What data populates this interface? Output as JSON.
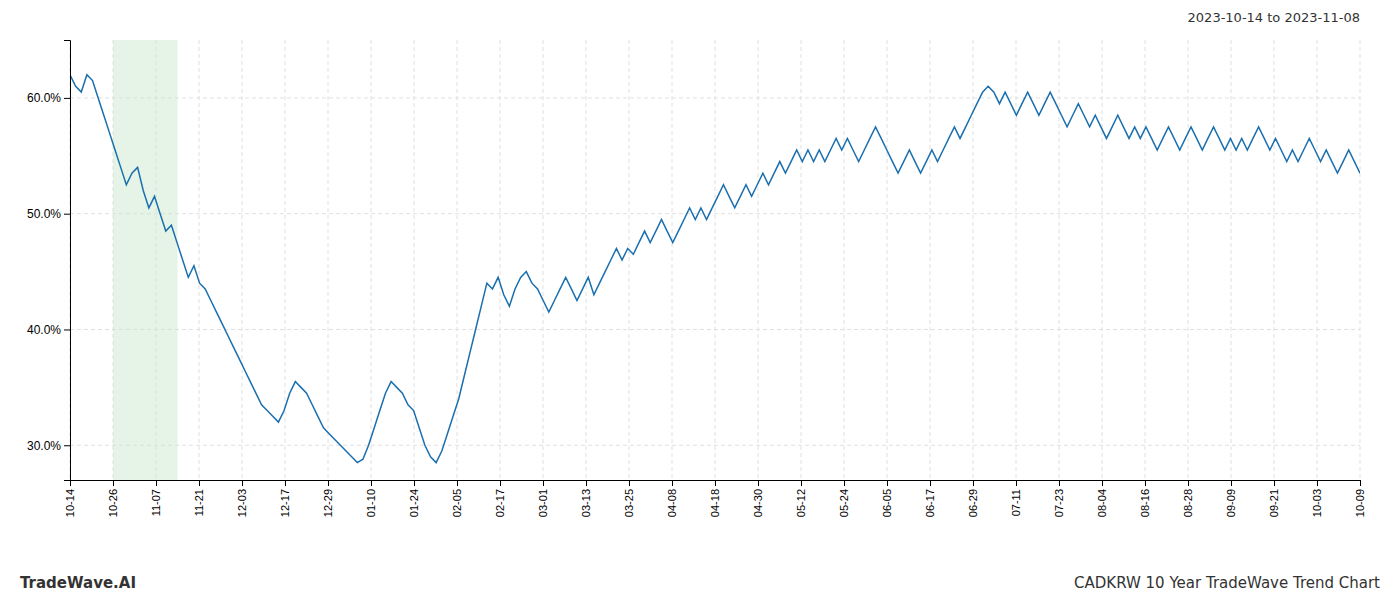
{
  "chart_data": {
    "type": "line",
    "title": "CADKRW 10 Year TradeWave Trend Chart",
    "subtitle": "2023-10-14 to 2023-11-08",
    "annotations": [
      "TradeWave.AI"
    ],
    "color": "#1a6faf",
    "grid": true,
    "xlim": [
      0,
      229
    ],
    "xticks": [
      {
        "value": 0,
        "label": "10-14"
      },
      {
        "value": 7.633333,
        "label": "10-26"
      },
      {
        "value": 15.266667,
        "label": "11-07"
      },
      {
        "value": 22.9,
        "label": "11-21"
      },
      {
        "value": 30.533333,
        "label": "12-03"
      },
      {
        "value": 38.166667,
        "label": "12-17"
      },
      {
        "value": 45.8,
        "label": "12-29"
      },
      {
        "value": 53.433333,
        "label": "01-10"
      },
      {
        "value": 61.066667,
        "label": "01-24"
      },
      {
        "value": 68.7,
        "label": "02-05"
      },
      {
        "value": 76.333333,
        "label": "02-17"
      },
      {
        "value": 83.966667,
        "label": "03-01"
      },
      {
        "value": 91.6,
        "label": "03-13"
      },
      {
        "value": 99.233333,
        "label": "03-25"
      },
      {
        "value": 106.866667,
        "label": "04-08"
      },
      {
        "value": 114.5,
        "label": "04-18"
      },
      {
        "value": 122.133333,
        "label": "04-30"
      },
      {
        "value": 129.766667,
        "label": "05-12"
      },
      {
        "value": 137.4,
        "label": "05-24"
      },
      {
        "value": 145.033333,
        "label": "06-05"
      },
      {
        "value": 152.666667,
        "label": "06-17"
      },
      {
        "value": 160.3,
        "label": "06-29"
      },
      {
        "value": 167.933333,
        "label": "07-11"
      },
      {
        "value": 175.566667,
        "label": "07-23"
      },
      {
        "value": 183.2,
        "label": "08-04"
      },
      {
        "value": 190.833333,
        "label": "08-16"
      },
      {
        "value": 198.466667,
        "label": "08-28"
      },
      {
        "value": 206.1,
        "label": "09-09"
      },
      {
        "value": 213.733333,
        "label": "09-21"
      },
      {
        "value": 221.366667,
        "label": "10-03"
      },
      {
        "value": 229,
        "label": "10-09"
      }
    ],
    "ylim": [
      27.0,
      65.0
    ],
    "yticks": [
      {
        "value": 30.0,
        "label": "30.0%"
      },
      {
        "value": 40.0,
        "label": "40.0%"
      },
      {
        "value": 50.0,
        "label": "50.0%"
      },
      {
        "value": 60.0,
        "label": "60.0%"
      }
    ],
    "shaded_span": {
      "xlim": [
        7.633333,
        19.083333
      ],
      "color": "#c8e6c9"
    },
    "values": [
      62.0,
      61.0,
      60.5,
      62.0,
      61.5,
      60.0,
      58.5,
      57.0,
      55.5,
      54.0,
      52.5,
      53.5,
      54.0,
      52.0,
      50.5,
      51.5,
      50.0,
      48.5,
      49.0,
      47.5,
      46.0,
      44.5,
      45.5,
      44.0,
      43.5,
      42.5,
      41.5,
      40.5,
      39.5,
      38.5,
      37.5,
      36.5,
      35.5,
      34.5,
      33.5,
      33.0,
      32.5,
      32.0,
      33.0,
      34.5,
      35.5,
      35.0,
      34.5,
      33.5,
      32.5,
      31.5,
      31.0,
      30.5,
      30.0,
      29.5,
      29.0,
      28.5,
      28.8,
      30.0,
      31.5,
      33.0,
      34.5,
      35.5,
      35.0,
      34.5,
      33.5,
      33.0,
      31.5,
      30.0,
      29.0,
      28.5,
      29.5,
      31.0,
      32.5,
      34.0,
      36.0,
      38.0,
      40.0,
      42.0,
      44.0,
      43.5,
      44.5,
      43.0,
      42.0,
      43.5,
      44.5,
      45.0,
      44.0,
      43.5,
      42.5,
      41.5,
      42.5,
      43.5,
      44.5,
      43.5,
      42.5,
      43.5,
      44.5,
      43.0,
      44.0,
      45.0,
      46.0,
      47.0,
      46.0,
      47.0,
      46.5,
      47.5,
      48.5,
      47.5,
      48.5,
      49.5,
      48.5,
      47.5,
      48.5,
      49.5,
      50.5,
      49.5,
      50.5,
      49.5,
      50.5,
      51.5,
      52.5,
      51.5,
      50.5,
      51.5,
      52.5,
      51.5,
      52.5,
      53.5,
      52.5,
      53.5,
      54.5,
      53.5,
      54.5,
      55.5,
      54.5,
      55.5,
      54.5,
      55.5,
      54.5,
      55.5,
      56.5,
      55.5,
      56.5,
      55.5,
      54.5,
      55.5,
      56.5,
      57.5,
      56.5,
      55.5,
      54.5,
      53.5,
      54.5,
      55.5,
      54.5,
      53.5,
      54.5,
      55.5,
      54.5,
      55.5,
      56.5,
      57.5,
      56.5,
      57.5,
      58.5,
      59.5,
      60.5,
      61.0,
      60.5,
      59.5,
      60.5,
      59.5,
      58.5,
      59.5,
      60.5,
      59.5,
      58.5,
      59.5,
      60.5,
      59.5,
      58.5,
      57.5,
      58.5,
      59.5,
      58.5,
      57.5,
      58.5,
      57.5,
      56.5,
      57.5,
      58.5,
      57.5,
      56.5,
      57.5,
      56.5,
      57.5,
      56.5,
      55.5,
      56.5,
      57.5,
      56.5,
      55.5,
      56.5,
      57.5,
      56.5,
      55.5,
      56.5,
      57.5,
      56.5,
      55.5,
      56.5,
      55.5,
      56.5,
      55.5,
      56.5,
      57.5,
      56.5,
      55.5,
      56.5,
      55.5,
      54.5,
      55.5,
      54.5,
      55.5,
      56.5,
      55.5,
      54.5,
      55.5,
      54.5,
      53.5,
      54.5,
      55.5,
      54.5,
      53.5
    ]
  }
}
